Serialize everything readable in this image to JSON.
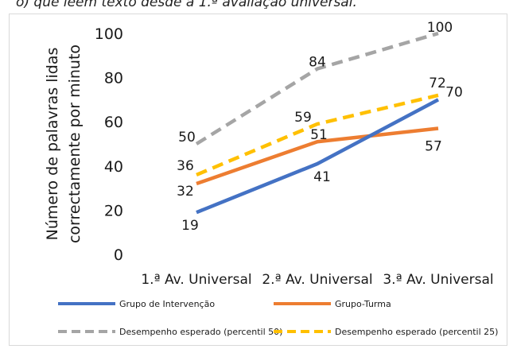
{
  "header_text": "o) que leem texto desde a 1.ª avaliação universal.",
  "chart_data": {
    "type": "line",
    "categories": [
      "1.ª Av. Universal",
      "2.ª Av. Universal",
      "3.ª Av. Universal"
    ],
    "ylabel_lines": [
      "Número de palavras lidas",
      "correctamente por minuto"
    ],
    "ylim": [
      0,
      100
    ],
    "yticks": [
      0,
      20,
      40,
      60,
      80,
      100
    ],
    "grid": false,
    "legend_position": "bottom",
    "series": [
      {
        "name": "Grupo de Intervenção",
        "values": [
          19,
          41,
          70
        ],
        "color": "#4472c4",
        "dashed": false
      },
      {
        "name": "Grupo-Turma",
        "values": [
          32,
          51,
          57
        ],
        "color": "#ed7d31",
        "dashed": false
      },
      {
        "name": "Desempenho esperado (percentil 50)",
        "values": [
          50,
          84,
          100
        ],
        "color": "#a5a5a5",
        "dashed": true
      },
      {
        "name": "Desempenho esperado (percentil 25)",
        "values": [
          36,
          59,
          72
        ],
        "color": "#ffc000",
        "dashed": true
      }
    ]
  }
}
